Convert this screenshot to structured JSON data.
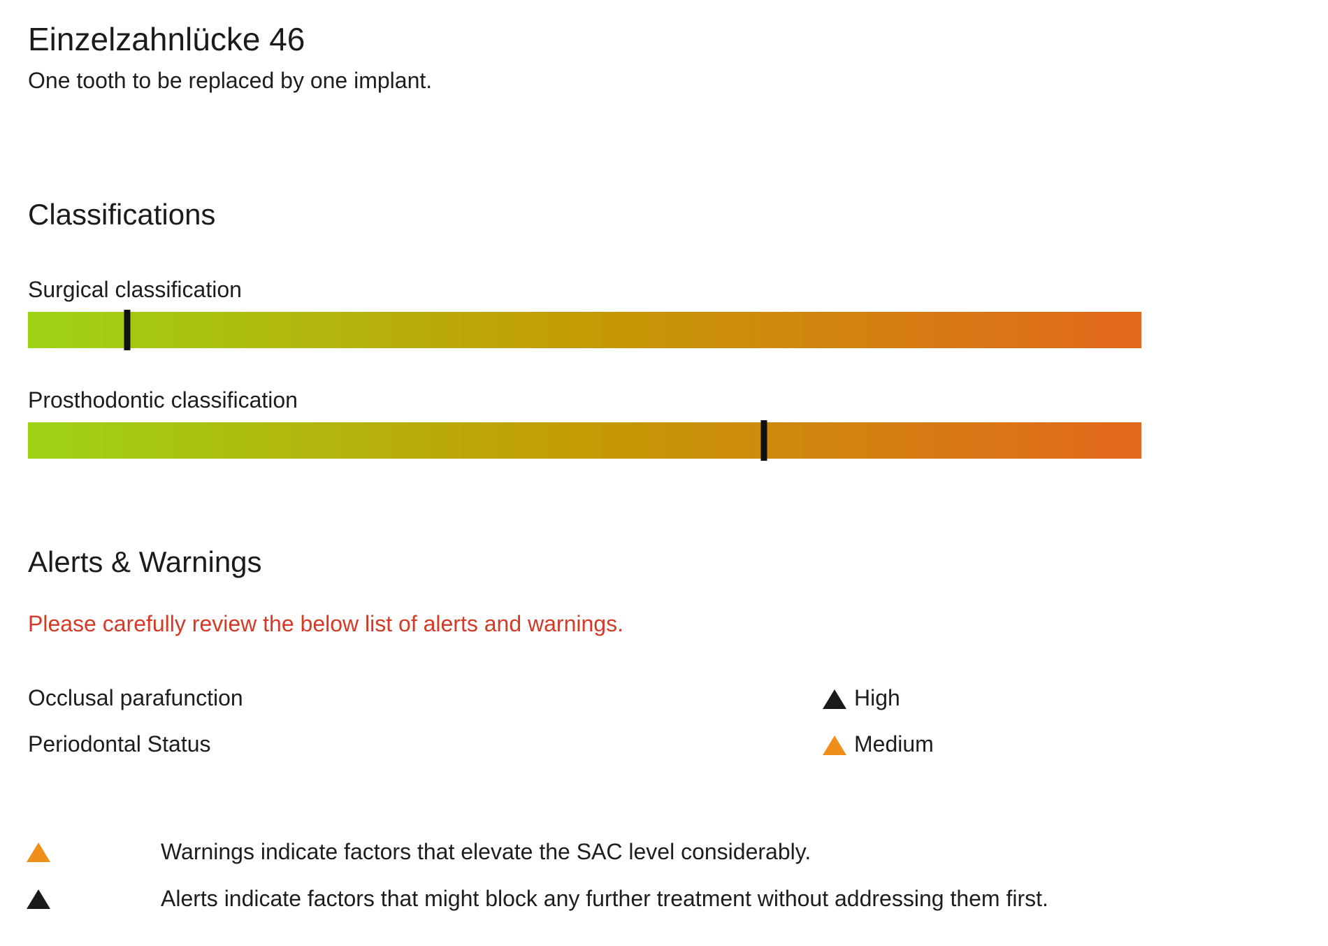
{
  "page": {
    "title": "Einzelzahnlücke 46",
    "subtitle": "One tooth to be replaced by one implant."
  },
  "classifications": {
    "heading": "Classifications",
    "scale_gradient": [
      "#9ed314",
      "#c49b05",
      "#e2671c"
    ],
    "marker_color": "#111111",
    "items": [
      {
        "label": "Surgical classification",
        "marker_percent": 8.9
      },
      {
        "label": "Prosthodontic classification",
        "marker_percent": 66.1
      }
    ]
  },
  "alerts": {
    "heading": "Alerts & Warnings",
    "notice": "Please carefully review the below list of alerts and warnings.",
    "notice_color": "#d43a26",
    "severity_colors": {
      "warning": "#ef8e1b",
      "alert": "#1a1a1a"
    },
    "items": [
      {
        "label": "Occlusal parafunction",
        "level": "High",
        "severity": "alert"
      },
      {
        "label": "Periodontal Status",
        "level": "Medium",
        "severity": "warning"
      }
    ],
    "legend": [
      {
        "severity": "warning",
        "text": "Warnings indicate factors that elevate the SAC level considerably."
      },
      {
        "severity": "alert",
        "text": "Alerts indicate factors that might block any further treatment without addressing them first."
      }
    ]
  }
}
